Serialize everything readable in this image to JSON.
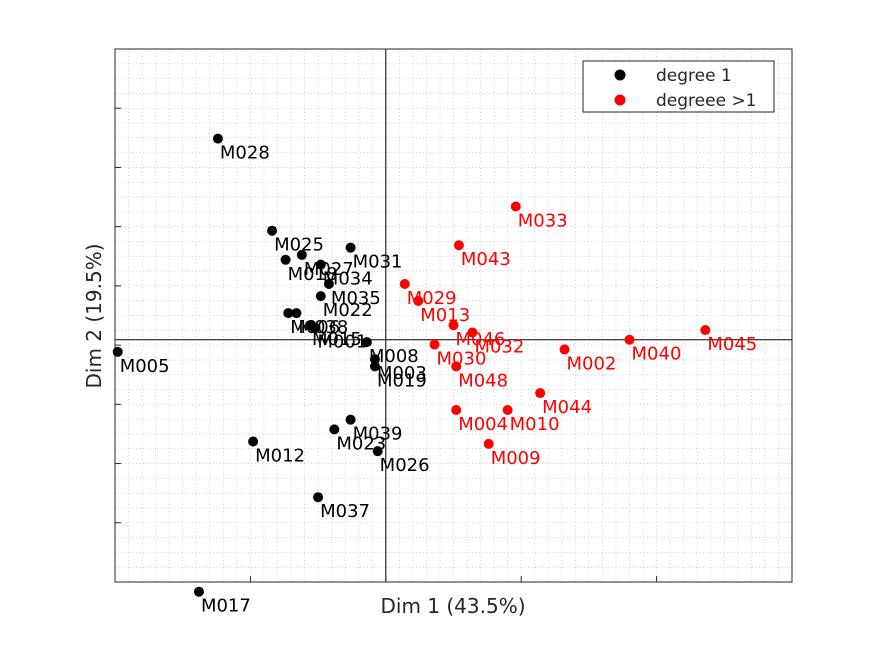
{
  "chart_data": {
    "type": "scatter",
    "xlabel": "Dim 1 (43.5%)",
    "ylabel": "Dim 2 (19.5%)",
    "xlim": [
      -1.0,
      1.5
    ],
    "ylim": [
      -1.0,
      1.2
    ],
    "grid": "dotted minor grid",
    "reference_lines": {
      "x": 0,
      "y": 0
    },
    "legend_position": "top-right",
    "colors": {
      "degree1": "#000000",
      "degree_gt1": "#ff0000"
    },
    "series": [
      {
        "name": "degree 1",
        "color": "#000000",
        "points": [
          {
            "label": "M028",
            "x": -0.62,
            "y": 0.83
          },
          {
            "label": "M025",
            "x": -0.42,
            "y": 0.45
          },
          {
            "label": "M031",
            "x": -0.13,
            "y": 0.38
          },
          {
            "label": "M027",
            "x": -0.31,
            "y": 0.35
          },
          {
            "label": "M018",
            "x": -0.37,
            "y": 0.33
          },
          {
            "label": "M034",
            "x": -0.24,
            "y": 0.31
          },
          {
            "label": "M035",
            "x": -0.21,
            "y": 0.23
          },
          {
            "label": "M022",
            "x": -0.24,
            "y": 0.18
          },
          {
            "label": "M038",
            "x": -0.33,
            "y": 0.11
          },
          {
            "label": "M006",
            "x": -0.36,
            "y": 0.11
          },
          {
            "label": "M015",
            "x": -0.28,
            "y": 0.06
          },
          {
            "label": "M001",
            "x": -0.26,
            "y": 0.05
          },
          {
            "label": "M008",
            "x": -0.07,
            "y": -0.01
          },
          {
            "label": "M003",
            "x": -0.04,
            "y": -0.08
          },
          {
            "label": "M019",
            "x": -0.04,
            "y": -0.11
          },
          {
            "label": "M005",
            "x": -0.99,
            "y": -0.05
          },
          {
            "label": "M039",
            "x": -0.13,
            "y": -0.33
          },
          {
            "label": "M023",
            "x": -0.19,
            "y": -0.37
          },
          {
            "label": "M012",
            "x": -0.49,
            "y": -0.42
          },
          {
            "label": "M026",
            "x": -0.03,
            "y": -0.46
          },
          {
            "label": "M037",
            "x": -0.25,
            "y": -0.65
          },
          {
            "label": "M017",
            "x": -0.69,
            "y": -1.04
          }
        ]
      },
      {
        "name": "degreee >1",
        "color": "#ff0000",
        "points": [
          {
            "label": "M033",
            "x": 0.48,
            "y": 0.55
          },
          {
            "label": "M043",
            "x": 0.27,
            "y": 0.39
          },
          {
            "label": "M029",
            "x": 0.07,
            "y": 0.23
          },
          {
            "label": "M013",
            "x": 0.12,
            "y": 0.16
          },
          {
            "label": "M046",
            "x": 0.25,
            "y": 0.06
          },
          {
            "label": "M032",
            "x": 0.32,
            "y": 0.03
          },
          {
            "label": "M030",
            "x": 0.18,
            "y": -0.02
          },
          {
            "label": "M048",
            "x": 0.26,
            "y": -0.11
          },
          {
            "label": "M002",
            "x": 0.66,
            "y": -0.04
          },
          {
            "label": "M040",
            "x": 0.9,
            "y": 0.0
          },
          {
            "label": "M045",
            "x": 1.18,
            "y": 0.04
          },
          {
            "label": "M044",
            "x": 0.57,
            "y": -0.22
          },
          {
            "label": "M004",
            "x": 0.26,
            "y": -0.29
          },
          {
            "label": "M010",
            "x": 0.45,
            "y": -0.29
          },
          {
            "label": "M009",
            "x": 0.38,
            "y": -0.43
          }
        ]
      }
    ]
  }
}
